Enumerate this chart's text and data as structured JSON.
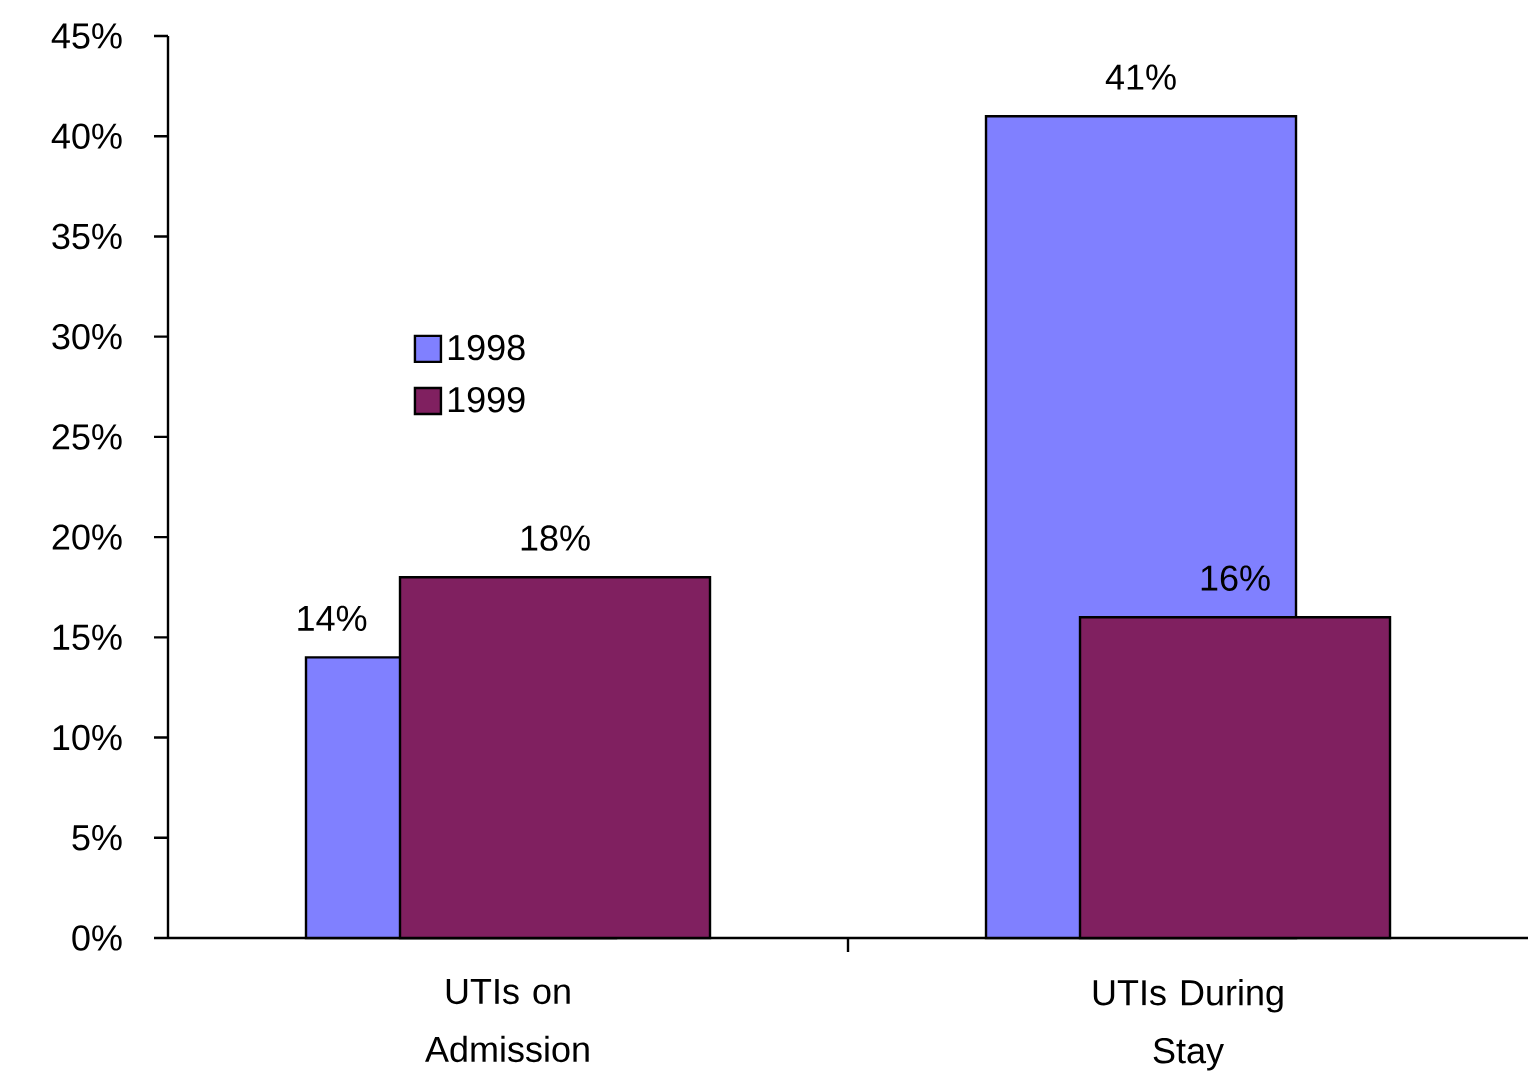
{
  "chart_data": {
    "type": "bar",
    "categories": [
      "UTIs on Admission",
      "UTIs During Stay"
    ],
    "series": [
      {
        "name": "1998",
        "color": "#8080ff",
        "values": [
          14,
          41
        ],
        "value_labels": [
          "14%",
          "41%"
        ]
      },
      {
        "name": "1999",
        "color": "#802060",
        "values": [
          18,
          16
        ],
        "value_labels": [
          "18%",
          "16%"
        ]
      }
    ],
    "ylim": [
      0,
      45
    ],
    "yticks": [
      {
        "value": 0,
        "label": "0%"
      },
      {
        "value": 5,
        "label": "5%"
      },
      {
        "value": 10,
        "label": "10%"
      },
      {
        "value": 15,
        "label": "15%"
      },
      {
        "value": 20,
        "label": "20%"
      },
      {
        "value": 25,
        "label": "25%"
      },
      {
        "value": 30,
        "label": "30%"
      },
      {
        "value": 35,
        "label": "35%"
      },
      {
        "value": 40,
        "label": "40%"
      },
      {
        "value": 45,
        "label": "45%"
      }
    ],
    "legend": "top left"
  }
}
